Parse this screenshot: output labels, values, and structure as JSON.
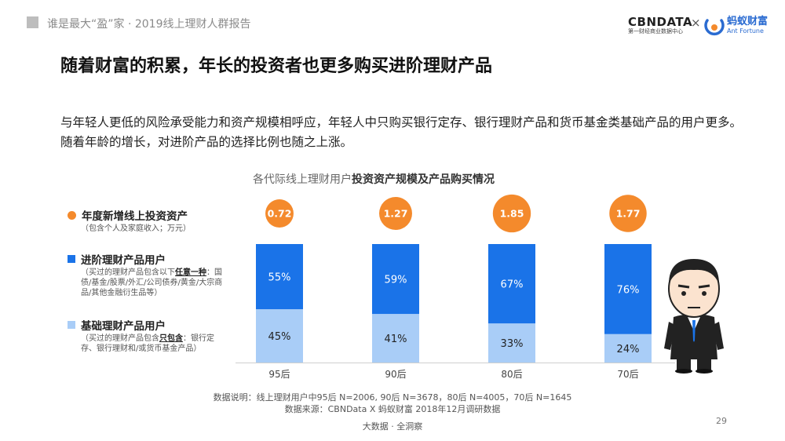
{
  "header": {
    "text": "谁是最大“盈”家 · 2019线上理财人群报告"
  },
  "logos": {
    "cbn_main": "CBNDATA",
    "cbn_sub": "第一财经商业数据中心",
    "separator": "×",
    "ant_cn": "蚂蚁财富",
    "ant_en": "Ant Fortune"
  },
  "page_title": "随着财富的积累，年长的投资者也更多购买进阶理财产品",
  "intro": "与年轻人更低的风险承受能力和资产规模相呼应，年轻人中只购买银行定存、银行理财产品和货币基金类基础产品的用户更多。随着年龄的增长，对进阶产品的选择比例也随之上涨。",
  "legend": {
    "assets": {
      "label": "年度新增线上投资资产",
      "note": "（包含个人及家庭收入；万元）"
    },
    "advanced": {
      "label": "进阶理财产品用户",
      "note_pre": "（买过的理财产品包含以下",
      "note_em": "任意一种",
      "note_post": "：国债/基金/股票/外汇/公司债券/黄金/大宗商品/其他金融衍生品等）"
    },
    "basic": {
      "label": "基础理财产品用户",
      "note_pre": "（买过的理财产品包含",
      "note_em": "只包含",
      "note_post": "：银行定存、银行理财和/或货币基金产品）"
    }
  },
  "chart_data": {
    "type": "bar",
    "title_plain": "各代际线上理财用户",
    "title_bold": "投资资产规模及产品购买情况",
    "categories": [
      "95后",
      "90后",
      "80后",
      "70后"
    ],
    "series": [
      {
        "name": "基础理财产品用户",
        "values": [
          45,
          41,
          33,
          24
        ],
        "labels": [
          "45%",
          "41%",
          "33%",
          "24%"
        ],
        "color": "#a9cdf7"
      },
      {
        "name": "进阶理财产品用户",
        "values": [
          55,
          59,
          67,
          76
        ],
        "labels": [
          "55%",
          "59%",
          "67%",
          "76%"
        ],
        "color": "#1a73e8"
      }
    ],
    "bubbles": {
      "name": "年度新增线上投资资产",
      "values": [
        0.72,
        1.27,
        1.85,
        1.77
      ],
      "labels": [
        "0.72",
        "1.27",
        "1.85",
        "1.77"
      ],
      "color": "#f48a2c"
    },
    "ylim": [
      0,
      100
    ]
  },
  "footnotes": {
    "note1": "数据说明：线上理财用户中95后 N=2006, 90后 N=3678，80后 N=4005，70后 N=1645",
    "note2": "数据来源：CBNData X 蚂蚁财富 2018年12月调研数据"
  },
  "footer": {
    "brand": "大数据 · 全洞察",
    "page_number": "29"
  }
}
